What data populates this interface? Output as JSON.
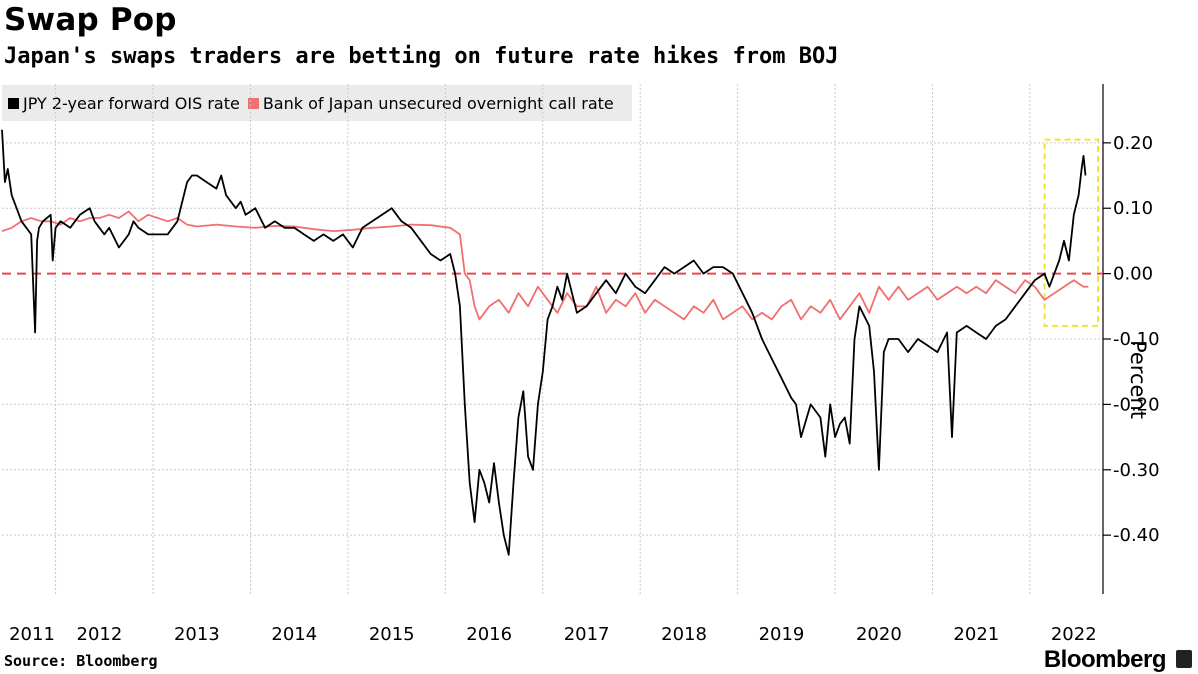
{
  "header": {
    "title": "Swap Pop",
    "subtitle": "Japan's swaps traders are betting on future rate hikes from BOJ"
  },
  "legend": {
    "items": [
      {
        "label": "JPY 2-year forward OIS rate",
        "color": "#000000"
      },
      {
        "label": "Bank of Japan unsecured overnight call rate",
        "color": "#f07070"
      }
    ]
  },
  "footer": {
    "source": "Source: Bloomberg",
    "brand": "Bloomberg"
  },
  "chart_data": {
    "type": "line",
    "title": "Swap Pop",
    "subtitle": "Japan's swaps traders are betting on future rate hikes from BOJ",
    "ylabel": "Percent",
    "ylim": [
      -0.49,
      0.29
    ],
    "xlim": [
      2011.0,
      2022.3
    ],
    "yticks": [
      0.2,
      0.1,
      0.0,
      -0.1,
      -0.2,
      -0.3,
      -0.4
    ],
    "ytick_labels": [
      "0.20",
      "0.10",
      "0.00",
      "-0.10",
      "-0.20",
      "-0.30",
      "-0.40"
    ],
    "xticks": [
      2011,
      2012,
      2013,
      2014,
      2015,
      2016,
      2017,
      2018,
      2019,
      2020,
      2021,
      2022
    ],
    "xtick_labels": [
      "2011",
      "2012",
      "2013",
      "2014",
      "2015",
      "2016",
      "2017",
      "2018",
      "2019",
      "2020",
      "2021",
      "2022"
    ],
    "grid": true,
    "legend_position": "top-left",
    "reference_line": {
      "y": 0.0,
      "style": "dashed",
      "color": "#e8474f"
    },
    "highlight_box": {
      "x": [
        2021.7,
        2022.25
      ],
      "y": [
        -0.08,
        0.205
      ],
      "color": "#f2e233",
      "style": "dashed"
    },
    "series": [
      {
        "name": "JPY 2-year forward OIS rate",
        "color": "#000000",
        "x": [
          2011.0,
          2011.03,
          2011.06,
          2011.1,
          2011.15,
          2011.2,
          2011.25,
          2011.3,
          2011.34,
          2011.36,
          2011.38,
          2011.42,
          2011.5,
          2011.52,
          2011.55,
          2011.6,
          2011.7,
          2011.8,
          2011.9,
          2011.95,
          2012.0,
          2012.05,
          2012.1,
          2012.2,
          2012.3,
          2012.35,
          2012.4,
          2012.5,
          2012.6,
          2012.7,
          2012.8,
          2012.9,
          2012.95,
          2013.0,
          2013.1,
          2013.2,
          2013.25,
          2013.3,
          2013.4,
          2013.45,
          2013.5,
          2013.6,
          2013.7,
          2013.8,
          2013.9,
          2014.0,
          2014.1,
          2014.2,
          2014.3,
          2014.4,
          2014.5,
          2014.6,
          2014.7,
          2014.8,
          2014.9,
          2015.0,
          2015.1,
          2015.2,
          2015.3,
          2015.4,
          2015.5,
          2015.6,
          2015.65,
          2015.7,
          2015.75,
          2015.8,
          2015.85,
          2015.9,
          2015.95,
          2016.0,
          2016.05,
          2016.1,
          2016.15,
          2016.2,
          2016.25,
          2016.3,
          2016.35,
          2016.4,
          2016.45,
          2016.5,
          2016.55,
          2016.6,
          2016.65,
          2016.7,
          2016.75,
          2016.8,
          2016.85,
          2016.9,
          2017.0,
          2017.1,
          2017.2,
          2017.3,
          2017.4,
          2017.5,
          2017.6,
          2017.7,
          2017.8,
          2017.9,
          2018.0,
          2018.1,
          2018.2,
          2018.3,
          2018.4,
          2018.5,
          2018.6,
          2018.7,
          2018.8,
          2018.9,
          2019.0,
          2019.1,
          2019.15,
          2019.2,
          2019.3,
          2019.4,
          2019.45,
          2019.5,
          2019.55,
          2019.6,
          2019.65,
          2019.7,
          2019.75,
          2019.8,
          2019.9,
          2019.95,
          2020.0,
          2020.05,
          2020.1,
          2020.2,
          2020.3,
          2020.4,
          2020.5,
          2020.6,
          2020.7,
          2020.75,
          2020.8,
          2020.9,
          2021.0,
          2021.1,
          2021.2,
          2021.3,
          2021.4,
          2021.5,
          2021.6,
          2021.7,
          2021.75,
          2021.8,
          2021.85,
          2021.9,
          2021.95,
          2022.0,
          2022.05,
          2022.08,
          2022.1,
          2022.12
        ],
        "y": [
          0.22,
          0.14,
          0.16,
          0.12,
          0.1,
          0.08,
          0.07,
          0.06,
          -0.09,
          0.05,
          0.07,
          0.08,
          0.09,
          0.02,
          0.07,
          0.08,
          0.07,
          0.09,
          0.1,
          0.08,
          0.07,
          0.06,
          0.07,
          0.04,
          0.06,
          0.08,
          0.07,
          0.06,
          0.06,
          0.06,
          0.08,
          0.14,
          0.15,
          0.15,
          0.14,
          0.13,
          0.15,
          0.12,
          0.1,
          0.11,
          0.09,
          0.1,
          0.07,
          0.08,
          0.07,
          0.07,
          0.06,
          0.05,
          0.06,
          0.05,
          0.06,
          0.04,
          0.07,
          0.08,
          0.09,
          0.1,
          0.08,
          0.07,
          0.05,
          0.03,
          0.02,
          0.03,
          0.0,
          -0.05,
          -0.2,
          -0.32,
          -0.38,
          -0.3,
          -0.32,
          -0.35,
          -0.29,
          -0.35,
          -0.4,
          -0.43,
          -0.32,
          -0.22,
          -0.18,
          -0.28,
          -0.3,
          -0.2,
          -0.15,
          -0.07,
          -0.05,
          -0.02,
          -0.04,
          0.0,
          -0.03,
          -0.06,
          -0.05,
          -0.03,
          -0.01,
          -0.03,
          0.0,
          -0.02,
          -0.03,
          -0.01,
          0.01,
          0.0,
          0.01,
          0.02,
          0.0,
          0.01,
          0.01,
          0.0,
          -0.03,
          -0.06,
          -0.1,
          -0.13,
          -0.16,
          -0.19,
          -0.2,
          -0.25,
          -0.2,
          -0.22,
          -0.28,
          -0.2,
          -0.25,
          -0.23,
          -0.22,
          -0.26,
          -0.1,
          -0.05,
          -0.08,
          -0.15,
          -0.3,
          -0.12,
          -0.1,
          -0.1,
          -0.12,
          -0.1,
          -0.11,
          -0.12,
          -0.09,
          -0.25,
          -0.09,
          -0.08,
          -0.09,
          -0.1,
          -0.08,
          -0.07,
          -0.05,
          -0.03,
          -0.01,
          0.0,
          -0.02,
          0.0,
          0.02,
          0.05,
          0.02,
          0.09,
          0.12,
          0.16,
          0.18,
          0.15
        ]
      },
      {
        "name": "Bank of Japan unsecured overnight call rate",
        "color": "#f07070",
        "x": [
          2011.0,
          2011.1,
          2011.2,
          2011.3,
          2011.4,
          2011.5,
          2011.6,
          2011.7,
          2011.8,
          2011.9,
          2012.0,
          2012.1,
          2012.2,
          2012.3,
          2012.4,
          2012.5,
          2012.6,
          2012.7,
          2012.8,
          2012.9,
          2013.0,
          2013.2,
          2013.4,
          2013.6,
          2013.8,
          2014.0,
          2014.2,
          2014.4,
          2014.6,
          2014.8,
          2015.0,
          2015.2,
          2015.4,
          2015.6,
          2015.7,
          2015.75,
          2015.8,
          2015.85,
          2015.9,
          2016.0,
          2016.1,
          2016.2,
          2016.3,
          2016.4,
          2016.5,
          2016.6,
          2016.7,
          2016.8,
          2016.9,
          2017.0,
          2017.1,
          2017.2,
          2017.3,
          2017.4,
          2017.5,
          2017.6,
          2017.7,
          2017.8,
          2017.9,
          2018.0,
          2018.1,
          2018.2,
          2018.3,
          2018.4,
          2018.5,
          2018.6,
          2018.7,
          2018.8,
          2018.9,
          2019.0,
          2019.1,
          2019.2,
          2019.3,
          2019.4,
          2019.5,
          2019.6,
          2019.7,
          2019.8,
          2019.9,
          2020.0,
          2020.1,
          2020.2,
          2020.3,
          2020.4,
          2020.5,
          2020.6,
          2020.7,
          2020.8,
          2020.9,
          2021.0,
          2021.1,
          2021.2,
          2021.3,
          2021.4,
          2021.5,
          2021.6,
          2021.7,
          2021.8,
          2021.9,
          2022.0,
          2022.1,
          2022.15
        ],
        "y": [
          0.065,
          0.07,
          0.08,
          0.085,
          0.08,
          0.08,
          0.075,
          0.085,
          0.08,
          0.085,
          0.085,
          0.09,
          0.085,
          0.095,
          0.08,
          0.09,
          0.085,
          0.08,
          0.085,
          0.075,
          0.072,
          0.075,
          0.072,
          0.07,
          0.073,
          0.072,
          0.068,
          0.065,
          0.067,
          0.07,
          0.072,
          0.075,
          0.074,
          0.07,
          0.06,
          0.0,
          -0.01,
          -0.05,
          -0.07,
          -0.05,
          -0.04,
          -0.06,
          -0.03,
          -0.05,
          -0.02,
          -0.04,
          -0.06,
          -0.03,
          -0.05,
          -0.05,
          -0.02,
          -0.06,
          -0.04,
          -0.05,
          -0.03,
          -0.06,
          -0.04,
          -0.05,
          -0.06,
          -0.07,
          -0.05,
          -0.06,
          -0.04,
          -0.07,
          -0.06,
          -0.05,
          -0.07,
          -0.06,
          -0.07,
          -0.05,
          -0.04,
          -0.07,
          -0.05,
          -0.06,
          -0.04,
          -0.07,
          -0.05,
          -0.03,
          -0.06,
          -0.02,
          -0.04,
          -0.02,
          -0.04,
          -0.03,
          -0.02,
          -0.04,
          -0.03,
          -0.02,
          -0.03,
          -0.02,
          -0.03,
          -0.01,
          -0.02,
          -0.03,
          -0.01,
          -0.02,
          -0.04,
          -0.03,
          -0.02,
          -0.01,
          -0.02,
          -0.02
        ]
      }
    ]
  }
}
